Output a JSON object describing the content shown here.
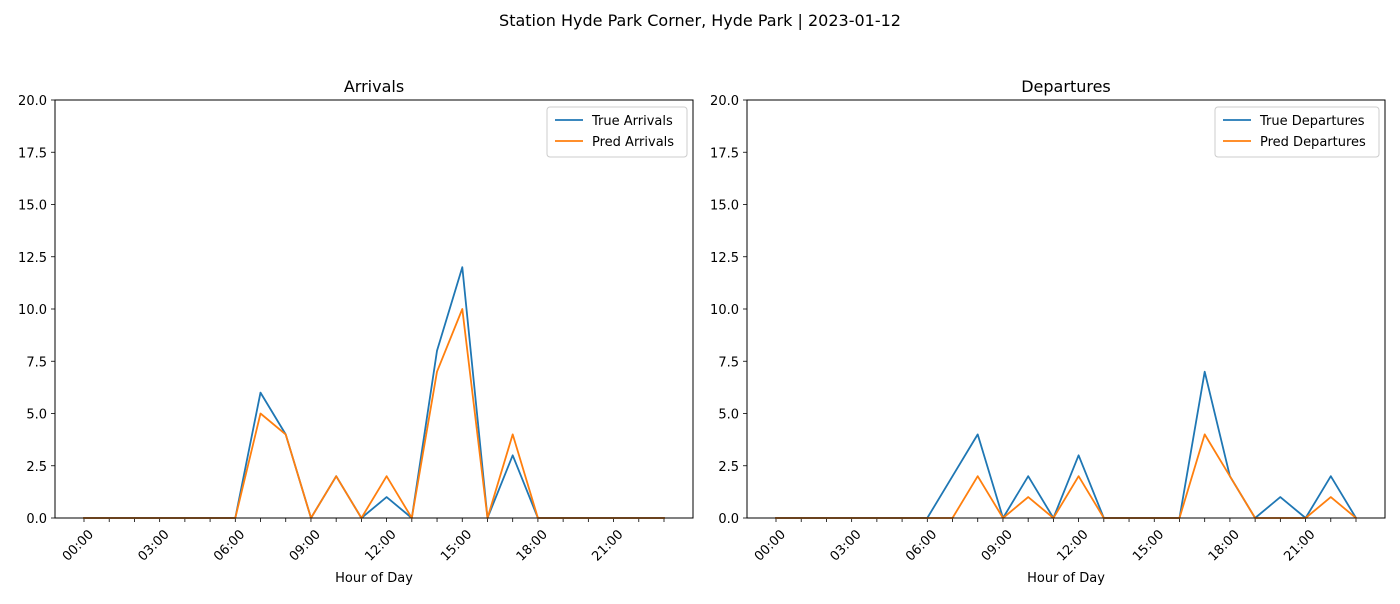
{
  "suptitle": "Station Hyde Park Corner, Hyde Park | 2023-01-12",
  "colors": {
    "true_series": "#1f77b4",
    "pred_series": "#ff7f0e"
  },
  "chart_data": [
    {
      "type": "line",
      "title": "Arrivals",
      "xlabel": "Hour of Day",
      "ylabel": "",
      "ylim": [
        0,
        20
      ],
      "yticks": [
        "0.0",
        "2.5",
        "5.0",
        "7.5",
        "10.0",
        "12.5",
        "15.0",
        "17.5",
        "20.0"
      ],
      "x": [
        0,
        1,
        2,
        3,
        4,
        5,
        6,
        7,
        8,
        9,
        10,
        11,
        12,
        13,
        14,
        15,
        16,
        17,
        18,
        19,
        20,
        21,
        22,
        23
      ],
      "xtick_labels": [
        "00:00",
        "03:00",
        "06:00",
        "09:00",
        "12:00",
        "15:00",
        "18:00",
        "21:00"
      ],
      "legend_position": "top-right",
      "series": [
        {
          "name": "True Arrivals",
          "values": [
            0,
            0,
            0,
            0,
            0,
            0,
            0,
            6,
            4,
            0,
            2,
            0,
            1,
            0,
            8,
            12,
            0,
            3,
            0,
            0,
            0,
            0,
            0,
            0
          ]
        },
        {
          "name": "Pred Arrivals",
          "values": [
            0,
            0,
            0,
            0,
            0,
            0,
            0,
            5,
            4,
            0,
            2,
            0,
            2,
            0,
            7,
            10,
            0,
            4,
            0,
            0,
            0,
            0,
            0,
            0
          ]
        }
      ]
    },
    {
      "type": "line",
      "title": "Departures",
      "xlabel": "Hour of Day",
      "ylabel": "",
      "ylim": [
        0,
        20
      ],
      "yticks": [
        "0.0",
        "2.5",
        "5.0",
        "7.5",
        "10.0",
        "12.5",
        "15.0",
        "17.5",
        "20.0"
      ],
      "x": [
        0,
        1,
        2,
        3,
        4,
        5,
        6,
        7,
        8,
        9,
        10,
        11,
        12,
        13,
        14,
        15,
        16,
        17,
        18,
        19,
        20,
        21,
        22,
        23
      ],
      "xtick_labels": [
        "00:00",
        "03:00",
        "06:00",
        "09:00",
        "12:00",
        "15:00",
        "18:00",
        "21:00"
      ],
      "legend_position": "top-right",
      "series": [
        {
          "name": "True Departures",
          "values": [
            0,
            0,
            0,
            0,
            0,
            0,
            0,
            2,
            4,
            0,
            2,
            0,
            3,
            0,
            0,
            0,
            0,
            7,
            2,
            0,
            1,
            0,
            2,
            0
          ]
        },
        {
          "name": "Pred Departures",
          "values": [
            0,
            0,
            0,
            0,
            0,
            0,
            0,
            0,
            2,
            0,
            1,
            0,
            2,
            0,
            0,
            0,
            0,
            4,
            2,
            0,
            0,
            0,
            1,
            0
          ]
        }
      ]
    }
  ]
}
